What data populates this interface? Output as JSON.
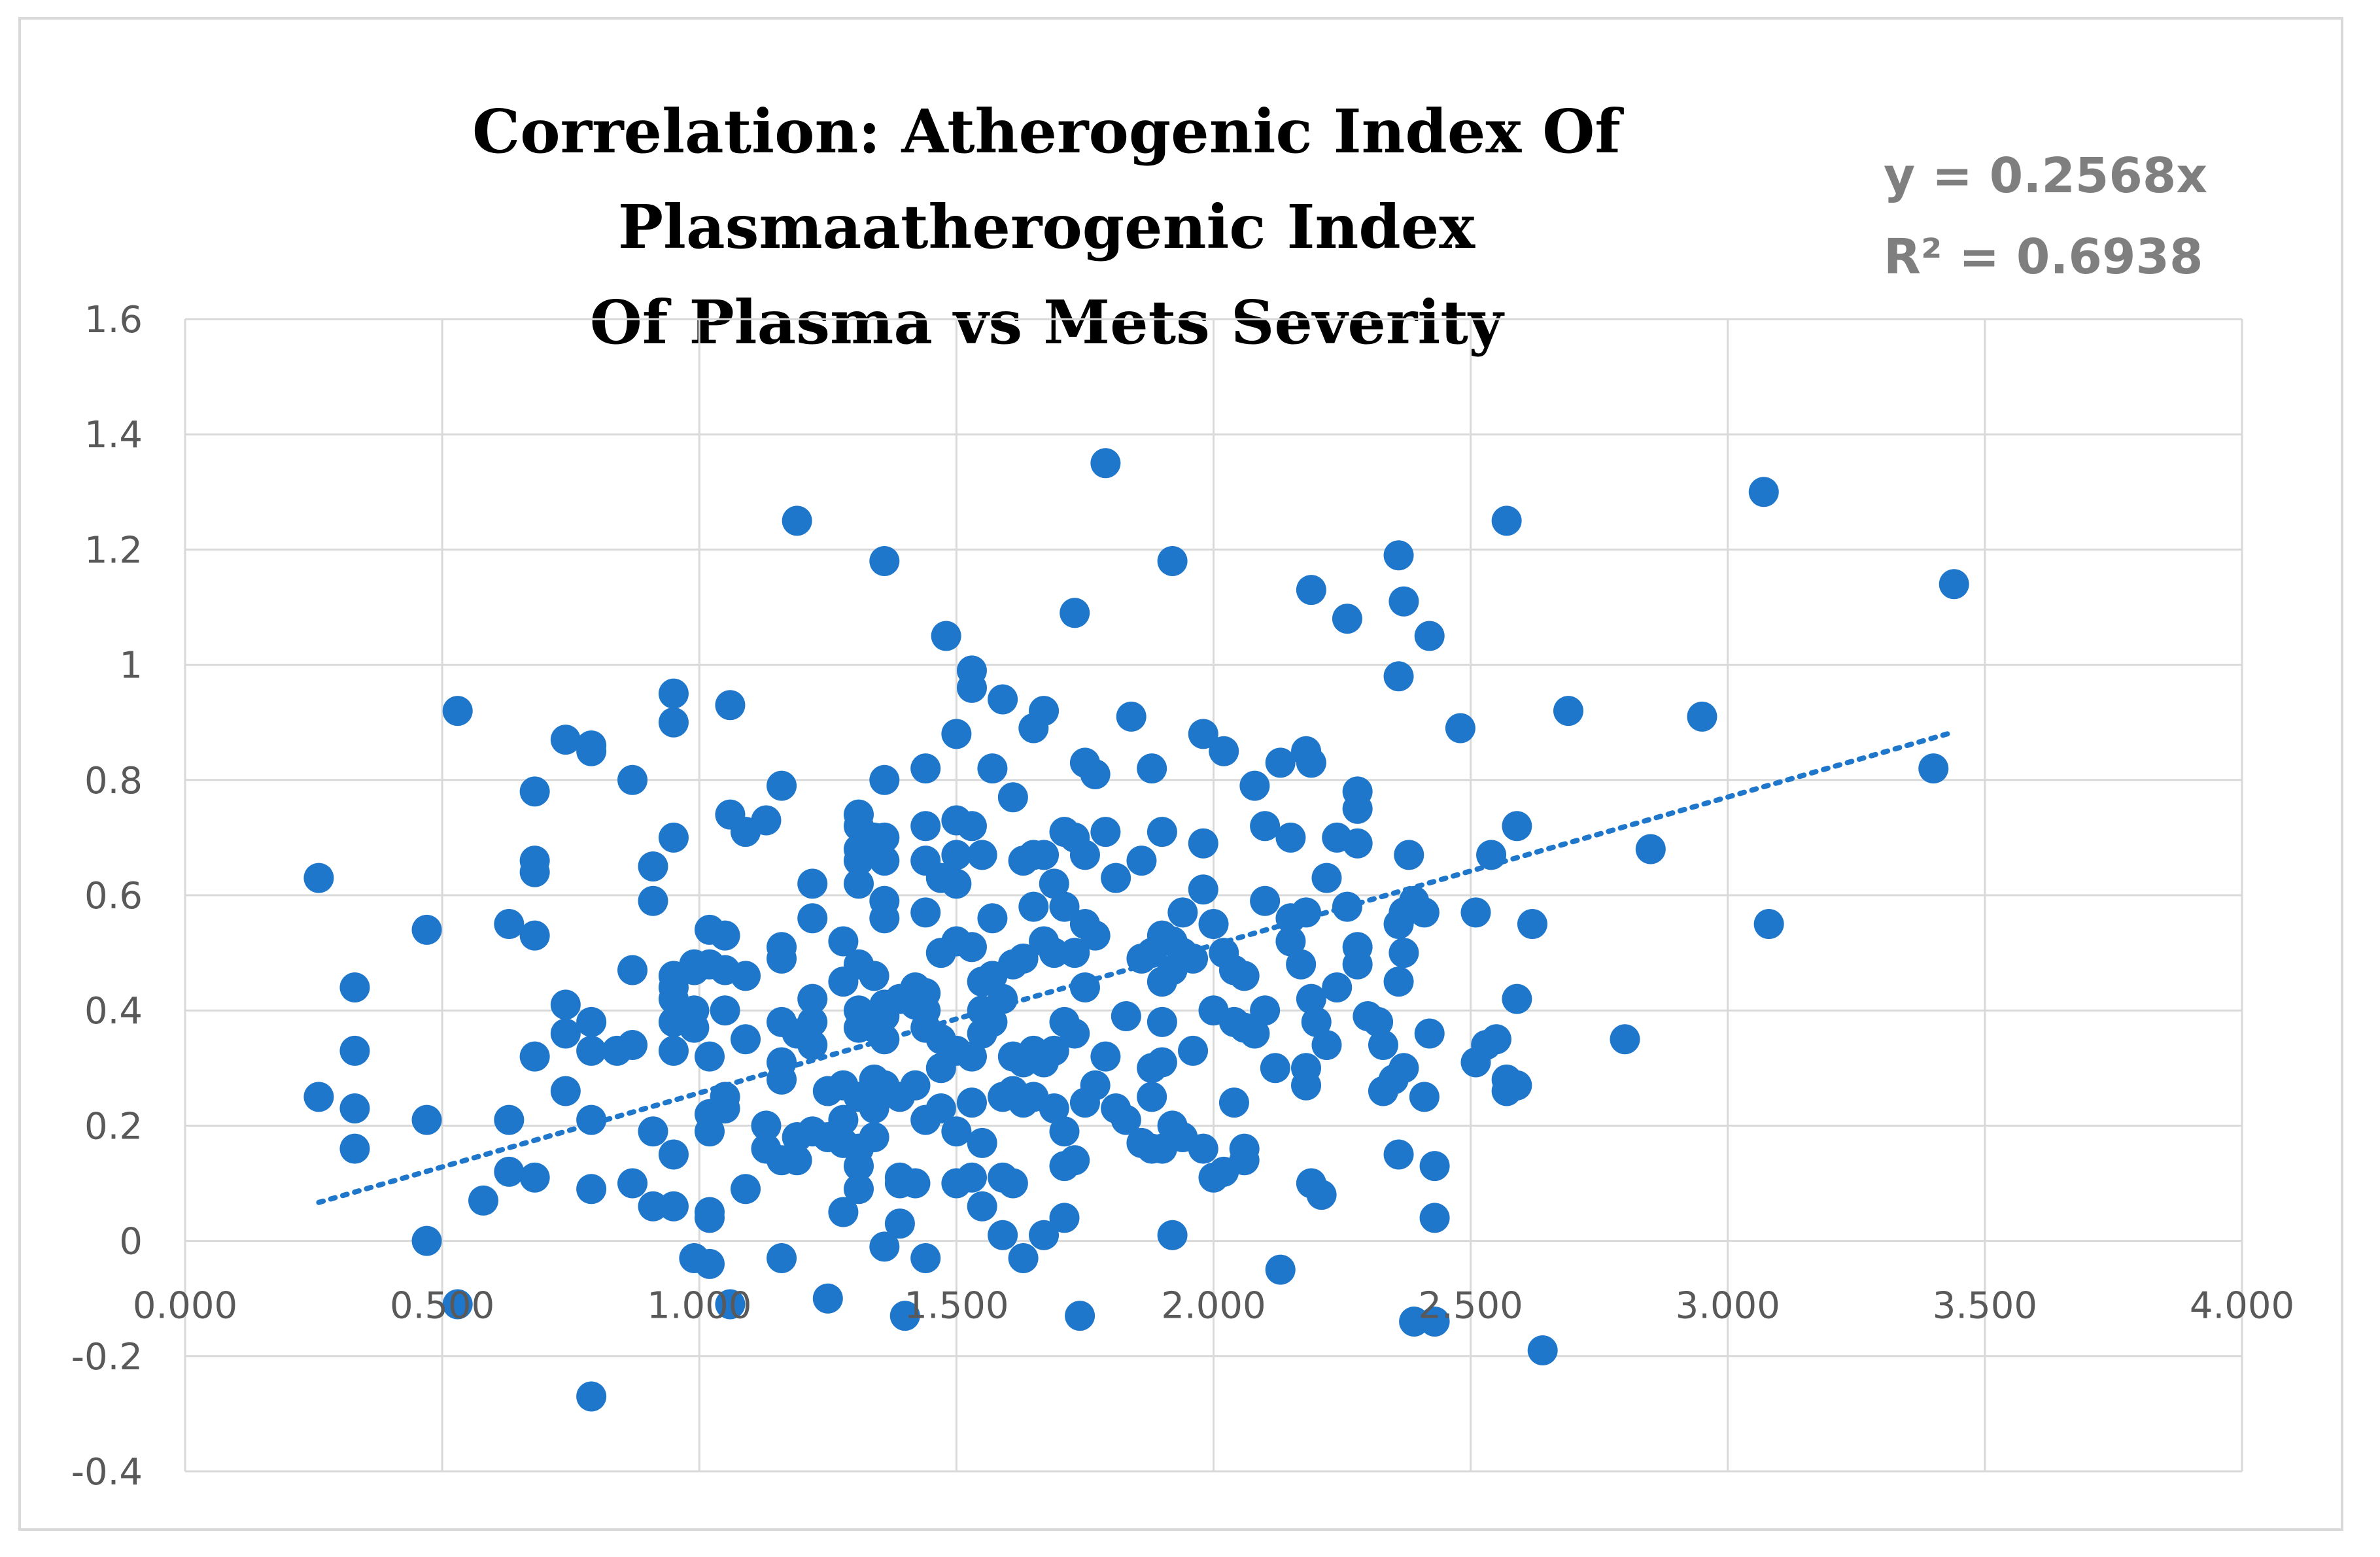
{
  "chart_data": {
    "type": "scatter",
    "title": "Correlation: Atherogenic Index Of Plasmaatherogenic Index Of Plasma vs Mets Severity",
    "title_lines": [
      "Correlation: Atherogenic Index Of Plasmaatherogenic Index",
      "Of Plasma vs Mets Severity"
    ],
    "xlabel": "",
    "ylabel": "",
    "xlim": [
      0,
      4
    ],
    "ylim": [
      -0.4,
      1.6
    ],
    "x_ticks": [
      "0.000",
      "0.500",
      "1.000",
      "1.500",
      "2.000",
      "2.500",
      "3.000",
      "3.500",
      "4.000"
    ],
    "y_ticks": [
      "1.6",
      "1.4",
      "1.2",
      "1",
      "0.8",
      "0.6",
      "0.4",
      "0.2",
      "0",
      "-0.2",
      "-0.4"
    ],
    "grid": true,
    "legend": "none",
    "marker_color": "#1f77cc",
    "gridline_color": "#d9d9d9",
    "trendline": {
      "type": "linear",
      "style": "dotted",
      "color": "#1f77cc",
      "equation": "y = 0.2568x",
      "r_squared": "R² = 0.6938",
      "x_range": [
        0.26,
        3.44
      ]
    },
    "points": [
      [
        0.26,
        0.63
      ],
      [
        0.26,
        0.25
      ],
      [
        0.33,
        0.44
      ],
      [
        0.33,
        0.33
      ],
      [
        0.33,
        0.23
      ],
      [
        0.33,
        0.16
      ],
      [
        0.47,
        0.54
      ],
      [
        0.47,
        0.21
      ],
      [
        0.47,
        0.0
      ],
      [
        0.53,
        0.92
      ],
      [
        0.53,
        -0.11
      ],
      [
        0.58,
        0.07
      ],
      [
        0.63,
        0.55
      ],
      [
        0.63,
        0.21
      ],
      [
        0.63,
        0.12
      ],
      [
        0.68,
        0.78
      ],
      [
        0.68,
        0.66
      ],
      [
        0.68,
        0.64
      ],
      [
        0.68,
        0.53
      ],
      [
        0.68,
        0.32
      ],
      [
        0.68,
        0.11
      ],
      [
        0.74,
        0.87
      ],
      [
        0.74,
        0.41
      ],
      [
        0.74,
        0.36
      ],
      [
        0.74,
        0.26
      ],
      [
        0.79,
        0.86
      ],
      [
        0.79,
        0.85
      ],
      [
        0.79,
        0.38
      ],
      [
        0.79,
        0.33
      ],
      [
        0.79,
        0.21
      ],
      [
        0.79,
        0.09
      ],
      [
        0.79,
        -0.27
      ],
      [
        0.84,
        0.33
      ],
      [
        0.87,
        0.8
      ],
      [
        0.87,
        0.47
      ],
      [
        0.87,
        0.34
      ],
      [
        0.87,
        0.1
      ],
      [
        0.91,
        0.65
      ],
      [
        0.91,
        0.59
      ],
      [
        0.91,
        0.19
      ],
      [
        0.91,
        0.06
      ],
      [
        0.95,
        0.95
      ],
      [
        0.95,
        0.9
      ],
      [
        0.95,
        0.7
      ],
      [
        0.95,
        0.46
      ],
      [
        0.95,
        0.44
      ],
      [
        0.95,
        0.42
      ],
      [
        0.95,
        0.38
      ],
      [
        0.95,
        0.33
      ],
      [
        0.95,
        0.15
      ],
      [
        0.95,
        0.06
      ],
      [
        0.99,
        0.48
      ],
      [
        0.99,
        0.47
      ],
      [
        0.99,
        0.4
      ],
      [
        0.99,
        0.37
      ],
      [
        0.99,
        -0.03
      ],
      [
        1.02,
        0.54
      ],
      [
        1.02,
        0.48
      ],
      [
        1.02,
        0.32
      ],
      [
        1.02,
        0.22
      ],
      [
        1.02,
        0.19
      ],
      [
        1.02,
        0.05
      ],
      [
        1.02,
        0.04
      ],
      [
        1.02,
        -0.04
      ],
      [
        1.05,
        0.53
      ],
      [
        1.05,
        0.47
      ],
      [
        1.05,
        0.4
      ],
      [
        1.05,
        0.23
      ],
      [
        1.05,
        0.25
      ],
      [
        1.06,
        0.93
      ],
      [
        1.06,
        0.74
      ],
      [
        1.06,
        -0.11
      ],
      [
        1.09,
        0.71
      ],
      [
        1.09,
        0.46
      ],
      [
        1.09,
        0.35
      ],
      [
        1.09,
        0.09
      ],
      [
        1.13,
        0.73
      ],
      [
        1.13,
        0.2
      ],
      [
        1.13,
        0.16
      ],
      [
        1.16,
        0.79
      ],
      [
        1.16,
        0.51
      ],
      [
        1.16,
        0.49
      ],
      [
        1.16,
        0.38
      ],
      [
        1.16,
        0.31
      ],
      [
        1.16,
        0.28
      ],
      [
        1.16,
        0.14
      ],
      [
        1.16,
        -0.03
      ],
      [
        1.19,
        1.25
      ],
      [
        1.19,
        0.36
      ],
      [
        1.19,
        0.18
      ],
      [
        1.19,
        0.14
      ],
      [
        1.22,
        0.62
      ],
      [
        1.22,
        0.56
      ],
      [
        1.22,
        0.42
      ],
      [
        1.22,
        0.38
      ],
      [
        1.22,
        0.34
      ],
      [
        1.22,
        0.19
      ],
      [
        1.25,
        0.26
      ],
      [
        1.25,
        0.18
      ],
      [
        1.25,
        -0.1
      ],
      [
        1.28,
        0.52
      ],
      [
        1.28,
        0.45
      ],
      [
        1.28,
        0.27
      ],
      [
        1.28,
        0.21
      ],
      [
        1.28,
        0.17
      ],
      [
        1.28,
        0.05
      ],
      [
        1.31,
        0.74
      ],
      [
        1.31,
        0.72
      ],
      [
        1.31,
        0.68
      ],
      [
        1.31,
        0.66
      ],
      [
        1.31,
        0.62
      ],
      [
        1.31,
        0.48
      ],
      [
        1.31,
        0.4
      ],
      [
        1.31,
        0.37
      ],
      [
        1.31,
        0.25
      ],
      [
        1.31,
        0.16
      ],
      [
        1.31,
        0.13
      ],
      [
        1.31,
        0.09
      ],
      [
        1.34,
        0.7
      ],
      [
        1.34,
        0.46
      ],
      [
        1.34,
        0.37
      ],
      [
        1.34,
        0.28
      ],
      [
        1.34,
        0.23
      ],
      [
        1.34,
        0.18
      ],
      [
        1.36,
        1.18
      ],
      [
        1.36,
        0.8
      ],
      [
        1.36,
        0.7
      ],
      [
        1.36,
        0.66
      ],
      [
        1.36,
        0.59
      ],
      [
        1.36,
        0.56
      ],
      [
        1.36,
        0.41
      ],
      [
        1.36,
        0.39
      ],
      [
        1.36,
        0.35
      ],
      [
        1.36,
        0.27
      ],
      [
        1.36,
        -0.01
      ],
      [
        1.39,
        0.42
      ],
      [
        1.39,
        0.25
      ],
      [
        1.39,
        0.11
      ],
      [
        1.39,
        0.1
      ],
      [
        1.39,
        0.03
      ],
      [
        1.4,
        -0.13
      ],
      [
        1.42,
        0.44
      ],
      [
        1.42,
        0.41
      ],
      [
        1.42,
        0.27
      ],
      [
        1.42,
        0.1
      ],
      [
        1.44,
        0.82
      ],
      [
        1.44,
        0.72
      ],
      [
        1.44,
        0.66
      ],
      [
        1.44,
        0.57
      ],
      [
        1.44,
        0.43
      ],
      [
        1.44,
        0.4
      ],
      [
        1.44,
        0.37
      ],
      [
        1.44,
        0.21
      ],
      [
        1.44,
        -0.03
      ],
      [
        1.47,
        0.63
      ],
      [
        1.47,
        0.5
      ],
      [
        1.47,
        0.35
      ],
      [
        1.47,
        0.3
      ],
      [
        1.47,
        0.23
      ],
      [
        1.48,
        1.05
      ],
      [
        1.5,
        0.88
      ],
      [
        1.5,
        0.73
      ],
      [
        1.5,
        0.67
      ],
      [
        1.5,
        0.62
      ],
      [
        1.5,
        0.52
      ],
      [
        1.5,
        0.33
      ],
      [
        1.5,
        0.19
      ],
      [
        1.5,
        0.1
      ],
      [
        1.53,
        0.99
      ],
      [
        1.53,
        0.96
      ],
      [
        1.53,
        0.72
      ],
      [
        1.53,
        0.51
      ],
      [
        1.53,
        0.32
      ],
      [
        1.53,
        0.24
      ],
      [
        1.53,
        0.11
      ],
      [
        1.55,
        0.67
      ],
      [
        1.55,
        0.45
      ],
      [
        1.55,
        0.4
      ],
      [
        1.55,
        0.36
      ],
      [
        1.55,
        0.17
      ],
      [
        1.55,
        0.06
      ],
      [
        1.57,
        0.82
      ],
      [
        1.57,
        0.56
      ],
      [
        1.57,
        0.46
      ],
      [
        1.57,
        0.38
      ],
      [
        1.59,
        0.94
      ],
      [
        1.59,
        0.42
      ],
      [
        1.59,
        0.25
      ],
      [
        1.59,
        0.11
      ],
      [
        1.59,
        0.01
      ],
      [
        1.61,
        0.77
      ],
      [
        1.61,
        0.48
      ],
      [
        1.61,
        0.32
      ],
      [
        1.61,
        0.26
      ],
      [
        1.61,
        0.1
      ],
      [
        1.63,
        0.66
      ],
      [
        1.63,
        0.49
      ],
      [
        1.63,
        0.31
      ],
      [
        1.63,
        0.24
      ],
      [
        1.63,
        -0.03
      ],
      [
        1.65,
        0.89
      ],
      [
        1.65,
        0.67
      ],
      [
        1.65,
        0.58
      ],
      [
        1.65,
        0.33
      ],
      [
        1.65,
        0.25
      ],
      [
        1.67,
        0.92
      ],
      [
        1.67,
        0.67
      ],
      [
        1.67,
        0.52
      ],
      [
        1.67,
        0.31
      ],
      [
        1.67,
        0.01
      ],
      [
        1.69,
        0.62
      ],
      [
        1.69,
        0.5
      ],
      [
        1.69,
        0.33
      ],
      [
        1.69,
        0.23
      ],
      [
        1.71,
        0.71
      ],
      [
        1.71,
        0.58
      ],
      [
        1.71,
        0.38
      ],
      [
        1.71,
        0.19
      ],
      [
        1.71,
        0.13
      ],
      [
        1.71,
        0.04
      ],
      [
        1.73,
        1.09
      ],
      [
        1.73,
        0.7
      ],
      [
        1.73,
        0.5
      ],
      [
        1.73,
        0.36
      ],
      [
        1.73,
        0.14
      ],
      [
        1.74,
        -0.13
      ],
      [
        1.75,
        0.83
      ],
      [
        1.75,
        0.67
      ],
      [
        1.75,
        0.55
      ],
      [
        1.75,
        0.44
      ],
      [
        1.75,
        0.24
      ],
      [
        1.77,
        0.81
      ],
      [
        1.77,
        0.53
      ],
      [
        1.77,
        0.27
      ],
      [
        1.79,
        1.35
      ],
      [
        1.79,
        0.71
      ],
      [
        1.79,
        0.32
      ],
      [
        1.81,
        0.63
      ],
      [
        1.81,
        0.23
      ],
      [
        1.83,
        0.39
      ],
      [
        1.83,
        0.21
      ],
      [
        1.84,
        0.91
      ],
      [
        1.86,
        0.66
      ],
      [
        1.86,
        0.49
      ],
      [
        1.86,
        0.17
      ],
      [
        1.88,
        0.82
      ],
      [
        1.88,
        0.5
      ],
      [
        1.88,
        0.3
      ],
      [
        1.88,
        0.25
      ],
      [
        1.88,
        0.16
      ],
      [
        1.9,
        0.71
      ],
      [
        1.9,
        0.53
      ],
      [
        1.9,
        0.45
      ],
      [
        1.9,
        0.38
      ],
      [
        1.9,
        0.31
      ],
      [
        1.9,
        0.16
      ],
      [
        1.92,
        1.18
      ],
      [
        1.92,
        0.52
      ],
      [
        1.92,
        0.47
      ],
      [
        1.92,
        0.2
      ],
      [
        1.92,
        0.01
      ],
      [
        1.94,
        0.57
      ],
      [
        1.94,
        0.5
      ],
      [
        1.94,
        0.18
      ],
      [
        1.96,
        0.49
      ],
      [
        1.96,
        0.33
      ],
      [
        1.98,
        0.88
      ],
      [
        1.98,
        0.69
      ],
      [
        1.98,
        0.61
      ],
      [
        1.98,
        0.16
      ],
      [
        2.0,
        0.55
      ],
      [
        2.0,
        0.4
      ],
      [
        2.0,
        0.11
      ],
      [
        2.02,
        0.85
      ],
      [
        2.02,
        0.5
      ],
      [
        2.02,
        0.12
      ],
      [
        2.04,
        0.47
      ],
      [
        2.04,
        0.38
      ],
      [
        2.04,
        0.24
      ],
      [
        2.06,
        0.46
      ],
      [
        2.06,
        0.37
      ],
      [
        2.06,
        0.16
      ],
      [
        2.06,
        0.14
      ],
      [
        2.08,
        0.79
      ],
      [
        2.08,
        0.36
      ],
      [
        2.1,
        0.72
      ],
      [
        2.1,
        0.59
      ],
      [
        2.1,
        0.4
      ],
      [
        2.12,
        0.3
      ],
      [
        2.13,
        0.83
      ],
      [
        2.13,
        -0.05
      ],
      [
        2.15,
        0.7
      ],
      [
        2.15,
        0.56
      ],
      [
        2.15,
        0.52
      ],
      [
        2.17,
        0.48
      ],
      [
        2.18,
        0.85
      ],
      [
        2.18,
        0.57
      ],
      [
        2.18,
        0.3
      ],
      [
        2.18,
        0.27
      ],
      [
        2.19,
        1.13
      ],
      [
        2.19,
        0.83
      ],
      [
        2.19,
        0.42
      ],
      [
        2.19,
        0.1
      ],
      [
        2.2,
        0.38
      ],
      [
        2.21,
        0.08
      ],
      [
        2.22,
        0.63
      ],
      [
        2.22,
        0.34
      ],
      [
        2.24,
        0.7
      ],
      [
        2.24,
        0.44
      ],
      [
        2.26,
        1.08
      ],
      [
        2.26,
        0.58
      ],
      [
        2.28,
        0.78
      ],
      [
        2.28,
        0.75
      ],
      [
        2.28,
        0.69
      ],
      [
        2.28,
        0.51
      ],
      [
        2.28,
        0.48
      ],
      [
        2.3,
        0.39
      ],
      [
        2.32,
        0.38
      ],
      [
        2.33,
        0.34
      ],
      [
        2.33,
        0.26
      ],
      [
        2.35,
        0.28
      ],
      [
        2.36,
        1.19
      ],
      [
        2.36,
        0.98
      ],
      [
        2.36,
        0.55
      ],
      [
        2.36,
        0.45
      ],
      [
        2.36,
        0.15
      ],
      [
        2.37,
        1.11
      ],
      [
        2.37,
        0.57
      ],
      [
        2.37,
        0.5
      ],
      [
        2.37,
        0.3
      ],
      [
        2.38,
        0.67
      ],
      [
        2.39,
        0.59
      ],
      [
        2.39,
        -0.14
      ],
      [
        2.41,
        0.57
      ],
      [
        2.41,
        0.25
      ],
      [
        2.42,
        1.05
      ],
      [
        2.42,
        0.36
      ],
      [
        2.43,
        0.13
      ],
      [
        2.43,
        0.04
      ],
      [
        2.43,
        -0.14
      ],
      [
        2.48,
        0.89
      ],
      [
        2.51,
        0.57
      ],
      [
        2.51,
        0.31
      ],
      [
        2.53,
        0.34
      ],
      [
        2.54,
        0.67
      ],
      [
        2.55,
        0.35
      ],
      [
        2.57,
        1.25
      ],
      [
        2.57,
        0.28
      ],
      [
        2.57,
        0.26
      ],
      [
        2.59,
        0.72
      ],
      [
        2.59,
        0.42
      ],
      [
        2.59,
        0.27
      ],
      [
        2.62,
        0.55
      ],
      [
        2.64,
        -0.19
      ],
      [
        2.69,
        0.92
      ],
      [
        2.8,
        0.35
      ],
      [
        2.85,
        0.68
      ],
      [
        2.95,
        0.91
      ],
      [
        3.07,
        1.3
      ],
      [
        3.08,
        0.55
      ],
      [
        3.4,
        0.82
      ],
      [
        3.44,
        1.14
      ]
    ]
  }
}
